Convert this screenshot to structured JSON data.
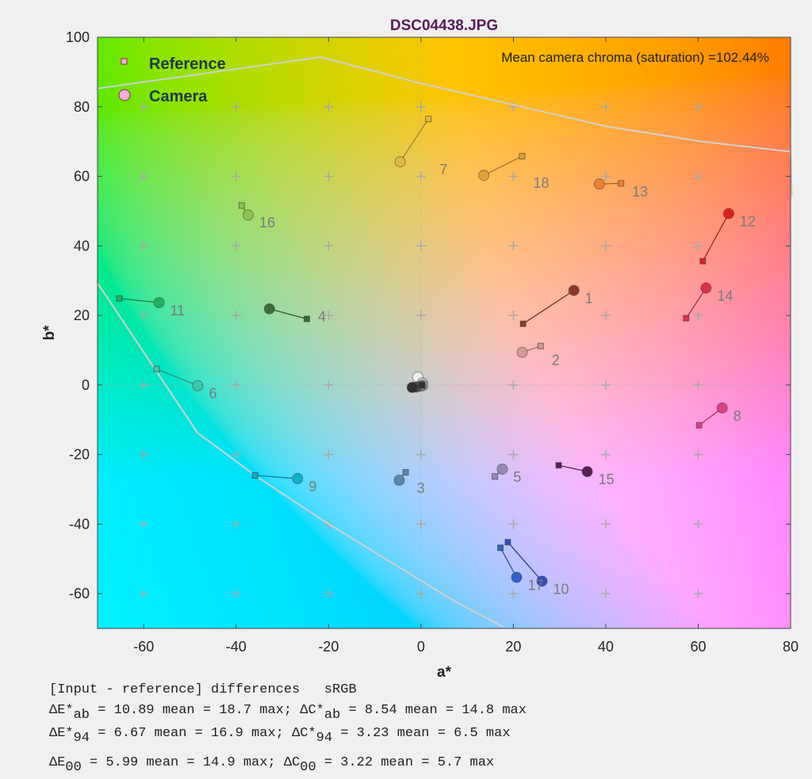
{
  "chart_data": {
    "type": "scatter",
    "title": "DSC04438.JPG",
    "xlabel": "a*",
    "ylabel": "b*",
    "xlim": [
      -70,
      80
    ],
    "ylim": [
      -70,
      100
    ],
    "xticks": [
      -60,
      -40,
      -20,
      0,
      20,
      40,
      60,
      80
    ],
    "yticks": [
      -60,
      -40,
      -20,
      0,
      20,
      40,
      60,
      80,
      100
    ],
    "grid": "plus markers every 20 units, dotted lines at a*=0 and b*=0",
    "legend": {
      "placement": "top-left",
      "entries": [
        "Reference",
        "Camera"
      ]
    },
    "annotation": "Mean camera chroma (saturation) =102.44%",
    "colors": {
      "title": "#5a1a5a",
      "gamut_line": "#d0d0d0",
      "legend_text": "#1e3a4a"
    },
    "gamut_boundary": [
      [
        [
          -70.3,
          85.2
        ],
        [
          -21.7,
          94.3
        ],
        [
          -0.2,
          86.8
        ],
        [
          40,
          74.4
        ],
        [
          61.4,
          69.9
        ],
        [
          80,
          67.1
        ],
        [
          80.3,
          54.3
        ]
      ],
      [
        [
          -70.3,
          29.9
        ],
        [
          -48.4,
          -13.7
        ],
        [
          -35.9,
          -26.0
        ],
        [
          -20.3,
          -39.7
        ],
        [
          7.2,
          -62.1
        ],
        [
          17.9,
          -69.6
        ]
      ]
    ],
    "patches": [
      {
        "label": "1",
        "ref": [
          22.1,
          17.6
        ],
        "cam": [
          33.1,
          27.2
        ],
        "color": "#8b3a2a"
      },
      {
        "label": "2",
        "ref": [
          25.9,
          11.2
        ],
        "cam": [
          21.9,
          9.4
        ],
        "color": "#d49a94"
      },
      {
        "label": "3",
        "ref": [
          -3.3,
          -25.1
        ],
        "cam": [
          -4.7,
          -27.4
        ],
        "color": "#5a88b0"
      },
      {
        "label": "4",
        "ref": [
          -24.7,
          19.0
        ],
        "cam": [
          -32.8,
          21.9
        ],
        "color": "#3a6e3a"
      },
      {
        "label": "5",
        "ref": [
          16.0,
          -26.3
        ],
        "cam": [
          17.6,
          -24.2
        ],
        "color": "#9a8ab8"
      },
      {
        "label": "6",
        "ref": [
          -57.2,
          4.6
        ],
        "cam": [
          -48.3,
          -0.2
        ],
        "color": "#40c8a8"
      },
      {
        "label": "7",
        "ref": [
          1.6,
          76.5
        ],
        "cam": [
          -4.5,
          64.2
        ],
        "color": "#e0b840"
      },
      {
        "label": "8",
        "ref": [
          60.2,
          -11.6
        ],
        "cam": [
          65.2,
          -6.6
        ],
        "color": "#e04080"
      },
      {
        "label": "9",
        "ref": [
          -35.9,
          -26.0
        ],
        "cam": [
          -26.7,
          -26.9
        ],
        "color": "#10b0c8"
      },
      {
        "label": "10",
        "ref": [
          18.8,
          -45.2
        ],
        "cam": [
          26.2,
          -56.4
        ],
        "color": "#3050c0"
      },
      {
        "label": "11",
        "ref": [
          -65.3,
          24.9
        ],
        "cam": [
          -56.7,
          23.7
        ],
        "color": "#20b060"
      },
      {
        "label": "12",
        "ref": [
          61.0,
          35.6
        ],
        "cam": [
          66.6,
          49.3
        ],
        "color": "#e02020"
      },
      {
        "label": "13",
        "ref": [
          43.3,
          58.0
        ],
        "cam": [
          38.6,
          57.8
        ],
        "color": "#f08030"
      },
      {
        "label": "14",
        "ref": [
          57.4,
          19.2
        ],
        "cam": [
          61.7,
          27.9
        ],
        "color": "#e03050"
      },
      {
        "label": "15",
        "ref": [
          29.8,
          -23.1
        ],
        "cam": [
          36.0,
          -24.9
        ],
        "color": "#5a2050"
      },
      {
        "label": "16",
        "ref": [
          -38.8,
          51.6
        ],
        "cam": [
          -37.4,
          48.9
        ],
        "color": "#90c050"
      },
      {
        "label": "17",
        "ref": [
          17.2,
          -46.8
        ],
        "cam": [
          20.7,
          -55.3
        ],
        "color": "#3060c8"
      },
      {
        "label": "18",
        "ref": [
          21.9,
          65.8
        ],
        "cam": [
          13.6,
          60.3
        ],
        "color": "#e0a040"
      },
      {
        "label": "",
        "ref": [
          0.2,
          0.2
        ],
        "cam": [
          -0.7,
          2.3
        ],
        "color": "#f0f0f0"
      },
      {
        "label": "",
        "ref": [
          0.2,
          0.0
        ],
        "cam": [
          0.3,
          0.6
        ],
        "color": "#c8c8c8"
      },
      {
        "label": "",
        "ref": [
          0.2,
          0.0
        ],
        "cam": [
          0.4,
          -0.1
        ],
        "color": "#a0a0a0"
      },
      {
        "label": "",
        "ref": [
          0.2,
          0.0
        ],
        "cam": [
          0.0,
          -0.3
        ],
        "color": "#787878"
      },
      {
        "label": "",
        "ref": [
          0.2,
          0.0
        ],
        "cam": [
          -1.0,
          -0.6
        ],
        "color": "#505050"
      },
      {
        "label": "",
        "ref": [
          0.2,
          0.0
        ],
        "cam": [
          -1.9,
          -0.7
        ],
        "color": "#303030"
      }
    ]
  },
  "stats": {
    "header": "[Input - reference] differences   sRGB",
    "rows": [
      {
        "d1": "ΔE*",
        "s1": "ab",
        "t1": " = 10.89 mean = 18.7 max; ",
        "d2": "ΔC*",
        "s2": "ab",
        "t2": " =  8.54 mean = 14.8 max"
      },
      {
        "d1": "ΔE*",
        "s1": "94",
        "t1": " =  6.67 mean = 16.9 max; ",
        "d2": "ΔC*",
        "s2": "94",
        "t2": " =  3.23 mean =  6.5 max"
      },
      {
        "d1": "ΔE",
        "s1": "00",
        "t1": "  =  5.99 mean = 14.9 max; ",
        "d2": "ΔC",
        "s2": "00",
        "t2": "  =  3.22 mean =  5.7 max"
      }
    ]
  }
}
